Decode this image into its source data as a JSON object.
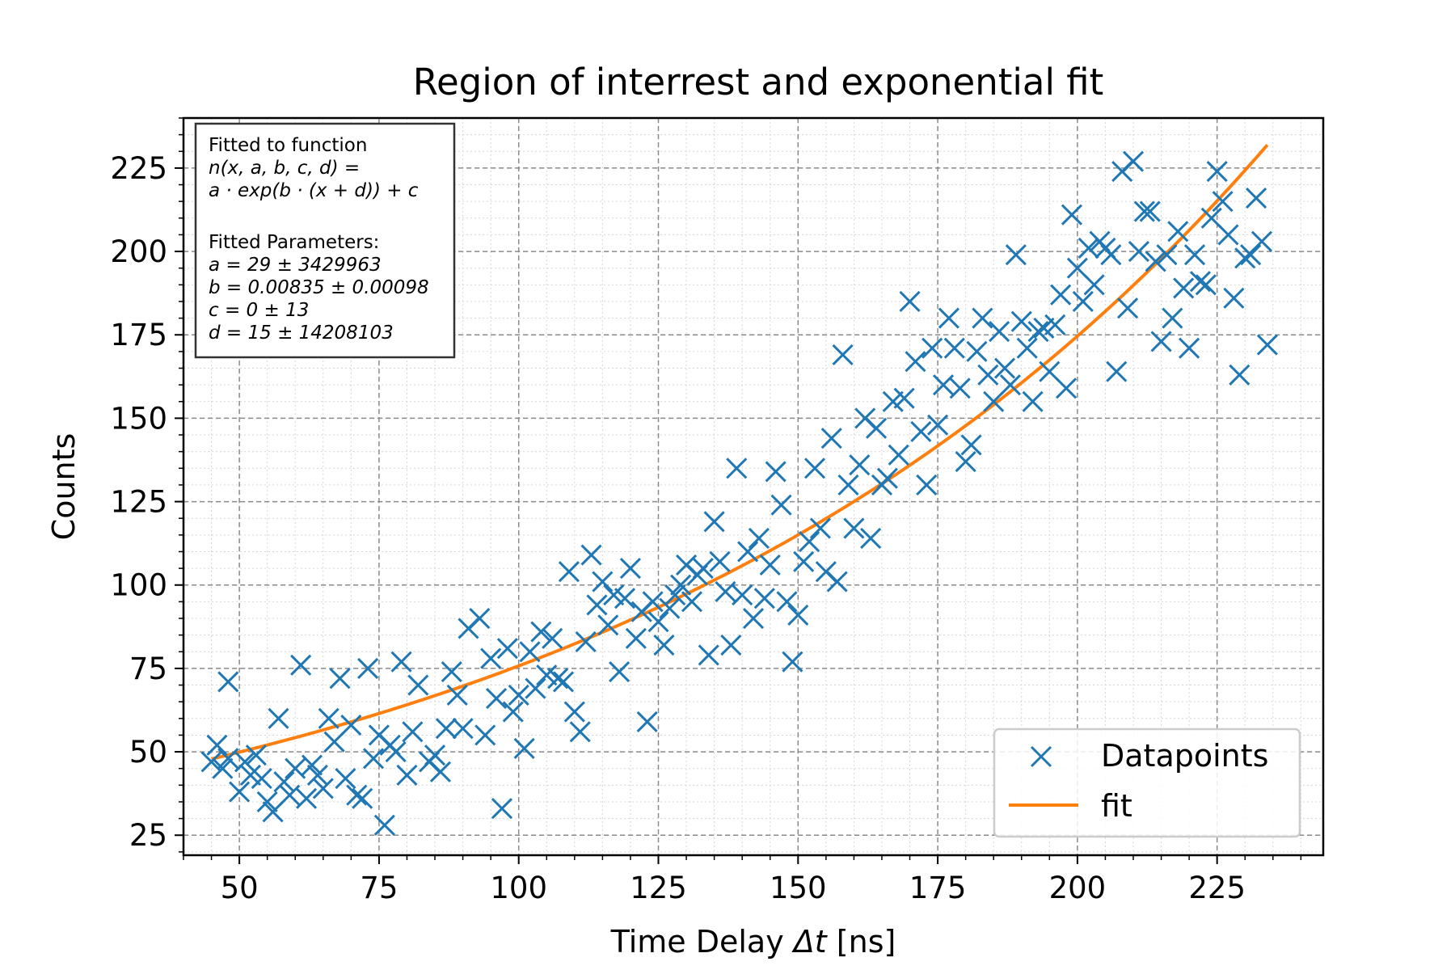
{
  "chart_data": {
    "type": "scatter",
    "title": "Region of interrest and exponential fit",
    "xlabel_prefix": "Time Delay ",
    "xlabel_symbol": "Δt",
    "xlabel_suffix": " [ns]",
    "ylabel": "Counts",
    "xlim": [
      40,
      244
    ],
    "ylim": [
      19,
      240
    ],
    "x_ticks": [
      50,
      75,
      100,
      125,
      150,
      175,
      200,
      225
    ],
    "y_ticks": [
      25,
      50,
      75,
      100,
      125,
      150,
      175,
      200,
      225
    ],
    "x_minor_step": 5,
    "y_minor_step": 5,
    "grid": true,
    "legend_position": "lower-right",
    "colors": {
      "datapoints": "#1f77b4",
      "fit": "#ff7f0e"
    },
    "annotation": {
      "lines": [
        "Fitted to function",
        "n(x, a, b, c, d) =",
        "a · exp(b · (x + d)) + c",
        "",
        "Fitted Parameters:",
        "a = 29 ± 3429963",
        "b = 0.00835 ± 0.00098",
        "c = 0 ± 13",
        "d = 15 ± 14208103"
      ]
    },
    "series": [
      {
        "name": "Datapoints",
        "kind": "scatter",
        "marker": "x",
        "points": [
          [
            45,
            47
          ],
          [
            46,
            52
          ],
          [
            47,
            45
          ],
          [
            48,
            48
          ],
          [
            48,
            71
          ],
          [
            50,
            38
          ],
          [
            51,
            47
          ],
          [
            52,
            43
          ],
          [
            53,
            49
          ],
          [
            54,
            42
          ],
          [
            55,
            35
          ],
          [
            56,
            32
          ],
          [
            57,
            60
          ],
          [
            58,
            41
          ],
          [
            59,
            37
          ],
          [
            60,
            45
          ],
          [
            61,
            76
          ],
          [
            62,
            36
          ],
          [
            63,
            46
          ],
          [
            64,
            43
          ],
          [
            65,
            39
          ],
          [
            66,
            60
          ],
          [
            67,
            53
          ],
          [
            68,
            72
          ],
          [
            69,
            42
          ],
          [
            70,
            58
          ],
          [
            71,
            37
          ],
          [
            72,
            36
          ],
          [
            73,
            75
          ],
          [
            74,
            48
          ],
          [
            75,
            55
          ],
          [
            76,
            28
          ],
          [
            77,
            52
          ],
          [
            78,
            50
          ],
          [
            79,
            77
          ],
          [
            80,
            43
          ],
          [
            81,
            56
          ],
          [
            82,
            70
          ],
          [
            84,
            47
          ],
          [
            85,
            49
          ],
          [
            86,
            44
          ],
          [
            87,
            57
          ],
          [
            88,
            74
          ],
          [
            89,
            67
          ],
          [
            90,
            57
          ],
          [
            91,
            87
          ],
          [
            93,
            90
          ],
          [
            94,
            55
          ],
          [
            95,
            78
          ],
          [
            96,
            66
          ],
          [
            97,
            33
          ],
          [
            98,
            81
          ],
          [
            99,
            62
          ],
          [
            100,
            67
          ],
          [
            101,
            51
          ],
          [
            102,
            80
          ],
          [
            103,
            69
          ],
          [
            104,
            86
          ],
          [
            105,
            73
          ],
          [
            106,
            84
          ],
          [
            107,
            72
          ],
          [
            108,
            71
          ],
          [
            109,
            104
          ],
          [
            110,
            62
          ],
          [
            111,
            56
          ],
          [
            112,
            83
          ],
          [
            113,
            109
          ],
          [
            114,
            94
          ],
          [
            115,
            101
          ],
          [
            116,
            88
          ],
          [
            117,
            97
          ],
          [
            118,
            74
          ],
          [
            119,
            96
          ],
          [
            120,
            105
          ],
          [
            121,
            84
          ],
          [
            122,
            92
          ],
          [
            123,
            59
          ],
          [
            124,
            95
          ],
          [
            125,
            89
          ],
          [
            126,
            82
          ],
          [
            127,
            93
          ],
          [
            128,
            97
          ],
          [
            129,
            100
          ],
          [
            130,
            106
          ],
          [
            131,
            95
          ],
          [
            132,
            103
          ],
          [
            133,
            105
          ],
          [
            134,
            79
          ],
          [
            135,
            119
          ],
          [
            136,
            107
          ],
          [
            137,
            98
          ],
          [
            138,
            82
          ],
          [
            139,
            135
          ],
          [
            140,
            97
          ],
          [
            141,
            110
          ],
          [
            142,
            90
          ],
          [
            143,
            114
          ],
          [
            144,
            96
          ],
          [
            145,
            106
          ],
          [
            146,
            134
          ],
          [
            147,
            124
          ],
          [
            148,
            95
          ],
          [
            149,
            77
          ],
          [
            150,
            91
          ],
          [
            151,
            107
          ],
          [
            152,
            113
          ],
          [
            153,
            135
          ],
          [
            154,
            117
          ],
          [
            155,
            104
          ],
          [
            156,
            144
          ],
          [
            157,
            101
          ],
          [
            158,
            169
          ],
          [
            159,
            130
          ],
          [
            160,
            117
          ],
          [
            161,
            136
          ],
          [
            162,
            150
          ],
          [
            163,
            114
          ],
          [
            164,
            147
          ],
          [
            165,
            130
          ],
          [
            166,
            132
          ],
          [
            167,
            155
          ],
          [
            168,
            139
          ],
          [
            169,
            156
          ],
          [
            170,
            185
          ],
          [
            171,
            167
          ],
          [
            172,
            146
          ],
          [
            173,
            130
          ],
          [
            174,
            171
          ],
          [
            175,
            148
          ],
          [
            176,
            160
          ],
          [
            177,
            180
          ],
          [
            178,
            171
          ],
          [
            179,
            159
          ],
          [
            180,
            137
          ],
          [
            181,
            142
          ],
          [
            182,
            170
          ],
          [
            183,
            180
          ],
          [
            184,
            163
          ],
          [
            185,
            155
          ],
          [
            186,
            176
          ],
          [
            187,
            165
          ],
          [
            188,
            160
          ],
          [
            189,
            199
          ],
          [
            190,
            179
          ],
          [
            191,
            171
          ],
          [
            192,
            155
          ],
          [
            193,
            176
          ],
          [
            194,
            177
          ],
          [
            195,
            164
          ],
          [
            196,
            178
          ],
          [
            197,
            187
          ],
          [
            198,
            159
          ],
          [
            199,
            211
          ],
          [
            200,
            195
          ],
          [
            201,
            185
          ],
          [
            202,
            201
          ],
          [
            203,
            190
          ],
          [
            204,
            203
          ],
          [
            205,
            201
          ],
          [
            206,
            199
          ],
          [
            207,
            164
          ],
          [
            208,
            224
          ],
          [
            209,
            183
          ],
          [
            210,
            227
          ],
          [
            211,
            200
          ],
          [
            212,
            212
          ],
          [
            213,
            212
          ],
          [
            214,
            197
          ],
          [
            215,
            173
          ],
          [
            216,
            199
          ],
          [
            217,
            180
          ],
          [
            218,
            206
          ],
          [
            219,
            189
          ],
          [
            220,
            171
          ],
          [
            221,
            199
          ],
          [
            222,
            191
          ],
          [
            223,
            190
          ],
          [
            224,
            210
          ],
          [
            225,
            224
          ],
          [
            226,
            215
          ],
          [
            227,
            205
          ],
          [
            228,
            186
          ],
          [
            229,
            163
          ],
          [
            230,
            198
          ],
          [
            231,
            199
          ],
          [
            232,
            216
          ],
          [
            233,
            203
          ],
          [
            234,
            172
          ]
        ]
      },
      {
        "name": "fit",
        "kind": "line",
        "x_range": [
          45,
          234
        ],
        "fit_params": {
          "a": 29,
          "b": 0.00835,
          "c": 0,
          "d": 15
        }
      }
    ]
  }
}
